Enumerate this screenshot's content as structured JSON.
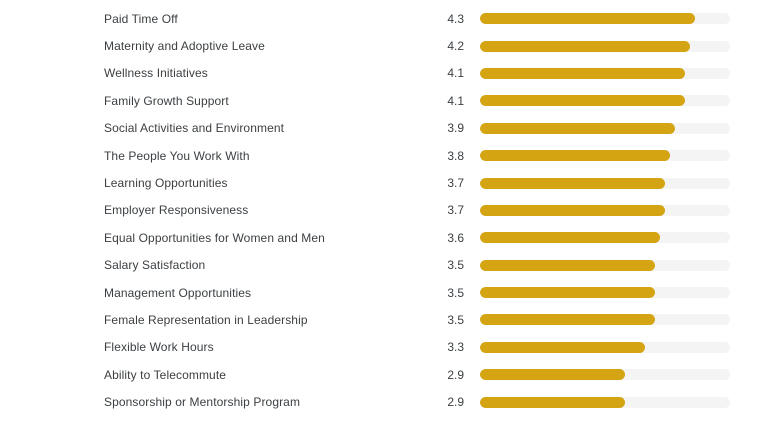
{
  "chart_data": {
    "type": "bar",
    "orientation": "horizontal",
    "title": "",
    "xlabel": "",
    "ylabel": "",
    "xlim": [
      0,
      5
    ],
    "grid": false,
    "legend": false,
    "value_labels_position": "left-of-bar",
    "bar_color": "#d5a412",
    "track_color": "#f4f4f4",
    "categories": [
      "Paid Time Off",
      "Maternity and Adoptive Leave",
      "Wellness Initiatives",
      "Family Growth Support",
      "Social Activities and Environment",
      "The People You Work With",
      "Learning Opportunities",
      "Employer Responsiveness",
      "Equal Opportunities for Women and Men",
      "Salary Satisfaction",
      "Management Opportunities",
      "Female Representation in Leadership",
      "Flexible Work Hours",
      "Ability to Telecommute",
      "Sponsorship or Mentorship Program"
    ],
    "values": [
      4.3,
      4.2,
      4.1,
      4.1,
      3.9,
      3.8,
      3.7,
      3.7,
      3.6,
      3.5,
      3.5,
      3.5,
      3.3,
      2.9,
      2.9
    ]
  }
}
